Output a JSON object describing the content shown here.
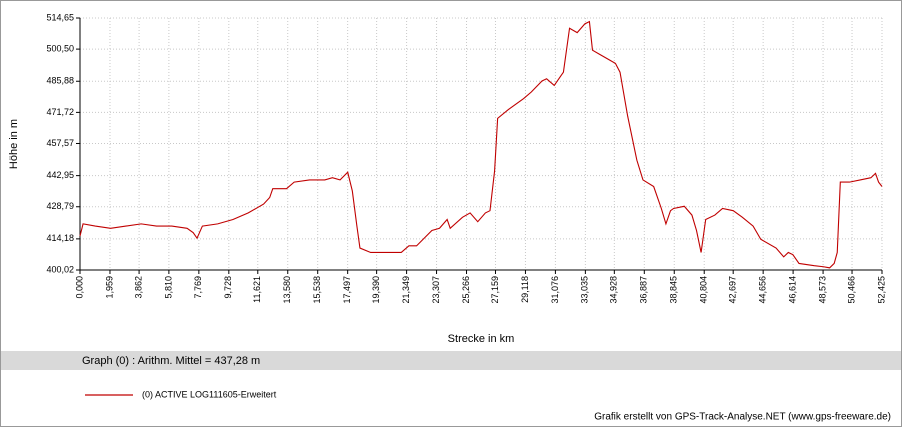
{
  "chart_data": {
    "type": "line",
    "y_label": "Höhe  in  m",
    "x_label": "Strecke  in  km",
    "summary": "Graph (0) :  Arithm. Mittel = 437,28 m",
    "footer": "Grafik erstellt von GPS-Track-Analyse.NET (www.gps-freeware.de)",
    "grid": true,
    "xlim": [
      0,
      52.425
    ],
    "ylim": [
      400.02,
      514.65
    ],
    "yticks": [
      {
        "value": 400.02,
        "label": "400,02"
      },
      {
        "value": 414.18,
        "label": "414,18"
      },
      {
        "value": 428.79,
        "label": "428,79"
      },
      {
        "value": 442.95,
        "label": "442,95"
      },
      {
        "value": 457.57,
        "label": "457,57"
      },
      {
        "value": 471.72,
        "label": "471,72"
      },
      {
        "value": 485.88,
        "label": "485,88"
      },
      {
        "value": 500.5,
        "label": "500,50"
      },
      {
        "value": 514.65,
        "label": "514,65"
      }
    ],
    "xticks": [
      {
        "value": 0,
        "label": "0,000"
      },
      {
        "value": 1.959,
        "label": "1,959"
      },
      {
        "value": 3.862,
        "label": "3,862"
      },
      {
        "value": 5.81,
        "label": "5,810"
      },
      {
        "value": 7.769,
        "label": "7,769"
      },
      {
        "value": 9.728,
        "label": "9,728"
      },
      {
        "value": 11.621,
        "label": "11,621"
      },
      {
        "value": 13.58,
        "label": "13,580"
      },
      {
        "value": 15.538,
        "label": "15,538"
      },
      {
        "value": 17.497,
        "label": "17,497"
      },
      {
        "value": 19.39,
        "label": "19,390"
      },
      {
        "value": 21.349,
        "label": "21,349"
      },
      {
        "value": 23.307,
        "label": "23,307"
      },
      {
        "value": 25.266,
        "label": "25,266"
      },
      {
        "value": 27.159,
        "label": "27,159"
      },
      {
        "value": 29.118,
        "label": "29,118"
      },
      {
        "value": 31.076,
        "label": "31,076"
      },
      {
        "value": 33.035,
        "label": "33,035"
      },
      {
        "value": 34.928,
        "label": "34,928"
      },
      {
        "value": 36.887,
        "label": "36,887"
      },
      {
        "value": 38.845,
        "label": "38,845"
      },
      {
        "value": 40.804,
        "label": "40,804"
      },
      {
        "value": 42.697,
        "label": "42,697"
      },
      {
        "value": 44.656,
        "label": "44,656"
      },
      {
        "value": 46.614,
        "label": "46,614"
      },
      {
        "value": 48.573,
        "label": "48,573"
      },
      {
        "value": 50.466,
        "label": "50,466"
      },
      {
        "value": 52.425,
        "label": "52,425"
      }
    ],
    "series": [
      {
        "name": "(0) ACTIVE LOG111605-Erweitert",
        "color": "#c00000",
        "x": [
          0,
          0.2,
          1,
          2,
          3,
          4,
          5,
          6,
          7,
          7.4,
          7.65,
          8,
          9,
          10,
          11,
          12,
          12.4,
          12.6,
          13.5,
          14,
          15,
          16,
          16.5,
          17,
          17.5,
          17.8,
          18.1,
          18.3,
          19,
          20,
          21,
          21.5,
          22,
          23,
          23.5,
          24,
          24.2,
          25,
          25.5,
          26,
          26.5,
          26.8,
          27.1,
          27.3,
          28,
          29,
          29.5,
          30.2,
          30.5,
          31,
          31.4,
          31.6,
          32,
          32.5,
          33,
          33.3,
          33.5,
          34,
          34.5,
          35,
          35.3,
          35.8,
          36.4,
          36.8,
          37.5,
          38,
          38.3,
          38.6,
          38.8,
          39.5,
          40,
          40.3,
          40.6,
          40.9,
          41.5,
          42,
          42.7,
          43.3,
          44,
          44.5,
          45.5,
          46,
          46.3,
          46.6,
          47,
          48,
          48.6,
          49,
          49.3,
          49.5,
          49.7,
          50.3,
          51,
          51.7,
          52,
          52.2,
          52.425
        ],
        "values": [
          415.5,
          421,
          420,
          419,
          420,
          421,
          420,
          420,
          419,
          417,
          414.5,
          420,
          421,
          423,
          426,
          430,
          433,
          437,
          437,
          440,
          441,
          441,
          442,
          441,
          444.5,
          436,
          420,
          410,
          408,
          408,
          408,
          411,
          411,
          418,
          419,
          423,
          419,
          424,
          426,
          422,
          426,
          427,
          445,
          469,
          473,
          478,
          481,
          486,
          487,
          484,
          488,
          490,
          510,
          508,
          512,
          513,
          500,
          498,
          496,
          494,
          490,
          470,
          450,
          441,
          438,
          428,
          421,
          427,
          428,
          429,
          425,
          418,
          408,
          423,
          425,
          428,
          427,
          424,
          420,
          414,
          410,
          406,
          408,
          407,
          403,
          402,
          401.5,
          401,
          403,
          408,
          440,
          440,
          441,
          442,
          444,
          440,
          438
        ]
      }
    ]
  }
}
